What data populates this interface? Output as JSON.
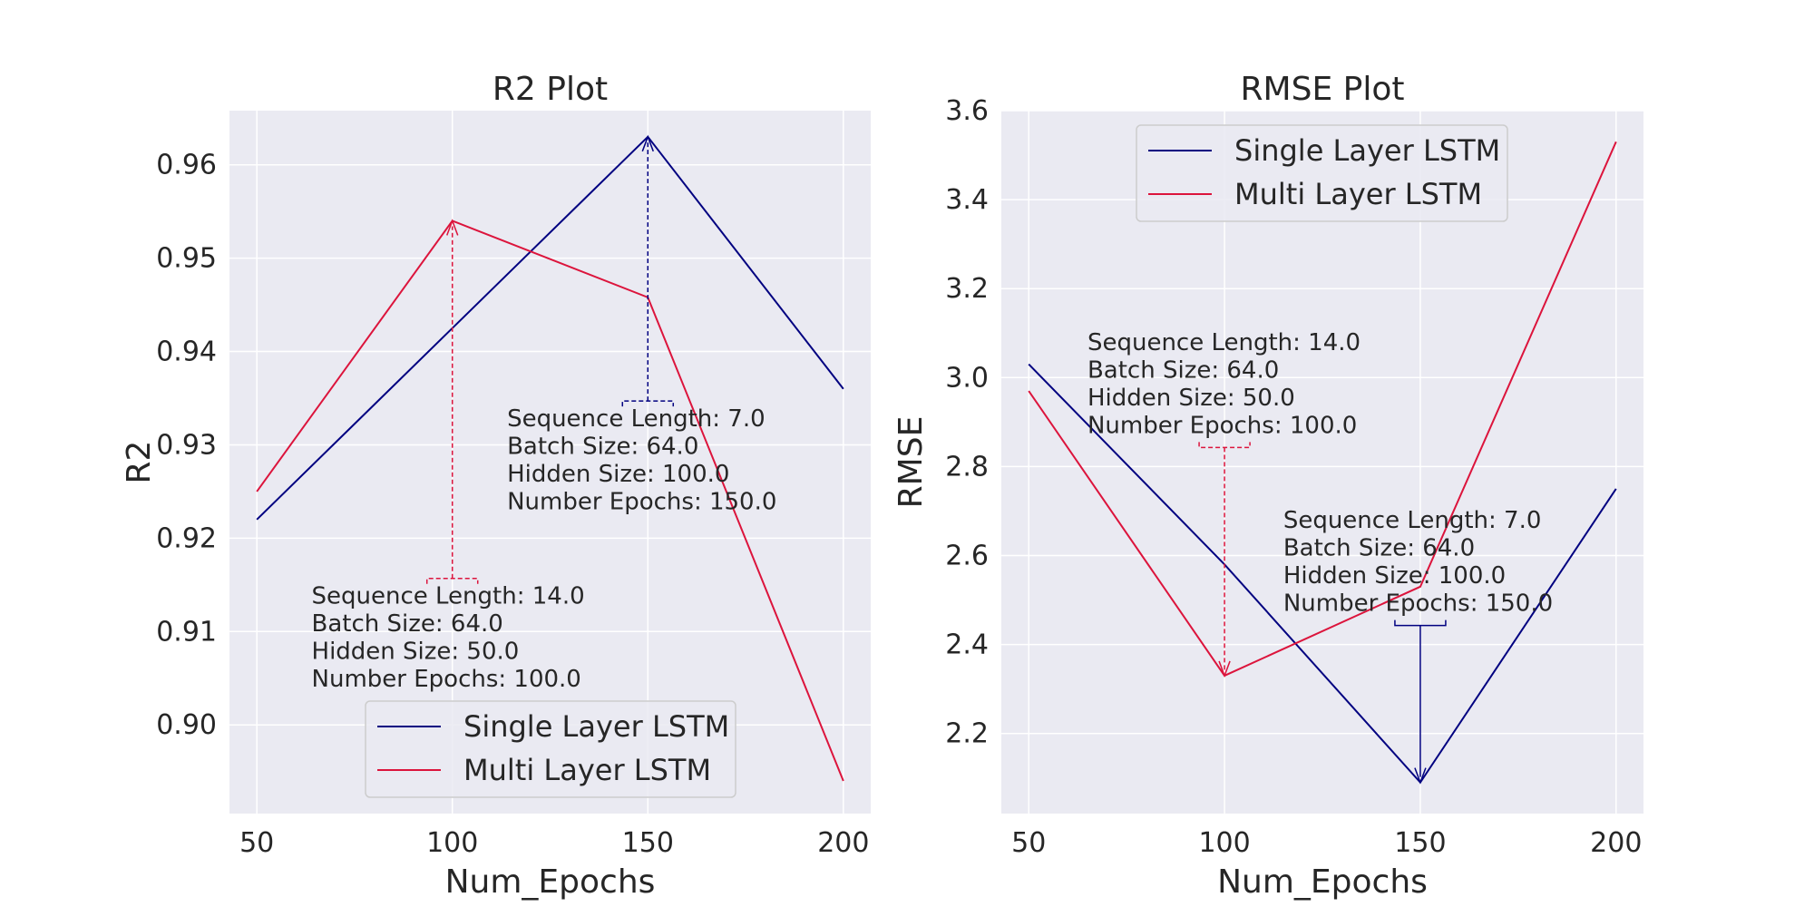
{
  "colors": {
    "background": "#ffffff",
    "plot_background": "#eaeaf2",
    "grid": "#ffffff",
    "single_layer": "#000080",
    "multi_layer": "#dc143c",
    "legend_border": "#cccccc"
  },
  "chart_data": [
    {
      "type": "line",
      "title": "R2 Plot",
      "xlabel": "Num_Epochs",
      "ylabel": "R2",
      "x": [
        50,
        100,
        150,
        200
      ],
      "xticks": [
        "50",
        "100",
        "150",
        "200"
      ],
      "yticks": [
        "0.90",
        "0.91",
        "0.92",
        "0.93",
        "0.94",
        "0.95",
        "0.96"
      ],
      "xlim": [
        43,
        207
      ],
      "ylim": [
        0.8905,
        0.9658
      ],
      "grid": true,
      "legend": {
        "placement": "bottom-center",
        "entries": [
          "Single Layer LSTM",
          "Multi Layer LSTM"
        ]
      },
      "series": [
        {
          "name": "Single Layer LSTM",
          "color": "#000080",
          "values": [
            0.922,
            0.9425,
            0.963,
            0.936
          ]
        },
        {
          "name": "Multi Layer LSTM",
          "color": "#dc143c",
          "values": [
            0.925,
            0.954,
            0.9458,
            0.894
          ]
        }
      ],
      "annotations": [
        {
          "series": "Single Layer LSTM",
          "color": "#000080",
          "point": [
            150,
            0.963
          ],
          "text_anchor": [
            114,
            0.9345
          ],
          "lines": [
            "Sequence Length: 7.0",
            "Batch Size: 64.0",
            "Hidden Size: 100.0",
            "Number Epochs: 150.0"
          ]
        },
        {
          "series": "Multi Layer LSTM",
          "color": "#dc143c",
          "point": [
            100,
            0.954
          ],
          "text_anchor": [
            64,
            0.9155
          ],
          "lines": [
            "Sequence Length: 14.0",
            "Batch Size: 64.0",
            "Hidden Size: 50.0",
            "Number Epochs: 100.0"
          ]
        }
      ]
    },
    {
      "type": "line",
      "title": "RMSE Plot",
      "xlabel": "Num_Epochs",
      "ylabel": "RMSE",
      "x": [
        50,
        100,
        150,
        200
      ],
      "xticks": [
        "50",
        "100",
        "150",
        "200"
      ],
      "yticks": [
        "2.2",
        "2.4",
        "2.6",
        "2.8",
        "3.0",
        "3.2",
        "3.4",
        "3.6"
      ],
      "xlim": [
        43,
        207
      ],
      "ylim": [
        2.02,
        3.6
      ],
      "grid": true,
      "legend": {
        "placement": "top-center",
        "entries": [
          "Single Layer LSTM",
          "Multi Layer LSTM"
        ]
      },
      "series": [
        {
          "name": "Single Layer LSTM",
          "color": "#000080",
          "values": [
            3.03,
            2.58,
            2.09,
            2.75
          ]
        },
        {
          "name": "Multi Layer LSTM",
          "color": "#dc143c",
          "values": [
            2.97,
            2.33,
            2.53,
            3.53
          ]
        }
      ],
      "annotations": [
        {
          "series": "Single Layer LSTM",
          "color": "#000080",
          "point": [
            150,
            2.09
          ],
          "text_anchor": [
            115,
            2.715
          ],
          "lines": [
            "Sequence Length: 7.0",
            "Batch Size: 64.0",
            "Hidden Size: 100.0",
            "Number Epochs: 150.0"
          ]
        },
        {
          "series": "Multi Layer LSTM",
          "color": "#dc143c",
          "point": [
            100,
            2.33
          ],
          "text_anchor": [
            65,
            3.115
          ],
          "lines": [
            "Sequence Length: 14.0",
            "Batch Size: 64.0",
            "Hidden Size: 50.0",
            "Number Epochs: 100.0"
          ]
        }
      ]
    }
  ]
}
